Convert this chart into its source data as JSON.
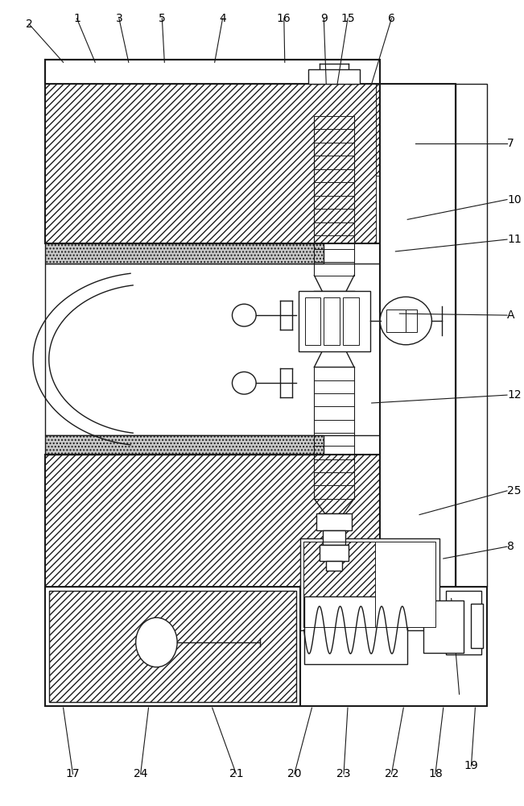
{
  "bg_color": "#ffffff",
  "lc": "#1a1a1a",
  "fig_w": 6.51,
  "fig_h": 10.0,
  "dpi": 100
}
